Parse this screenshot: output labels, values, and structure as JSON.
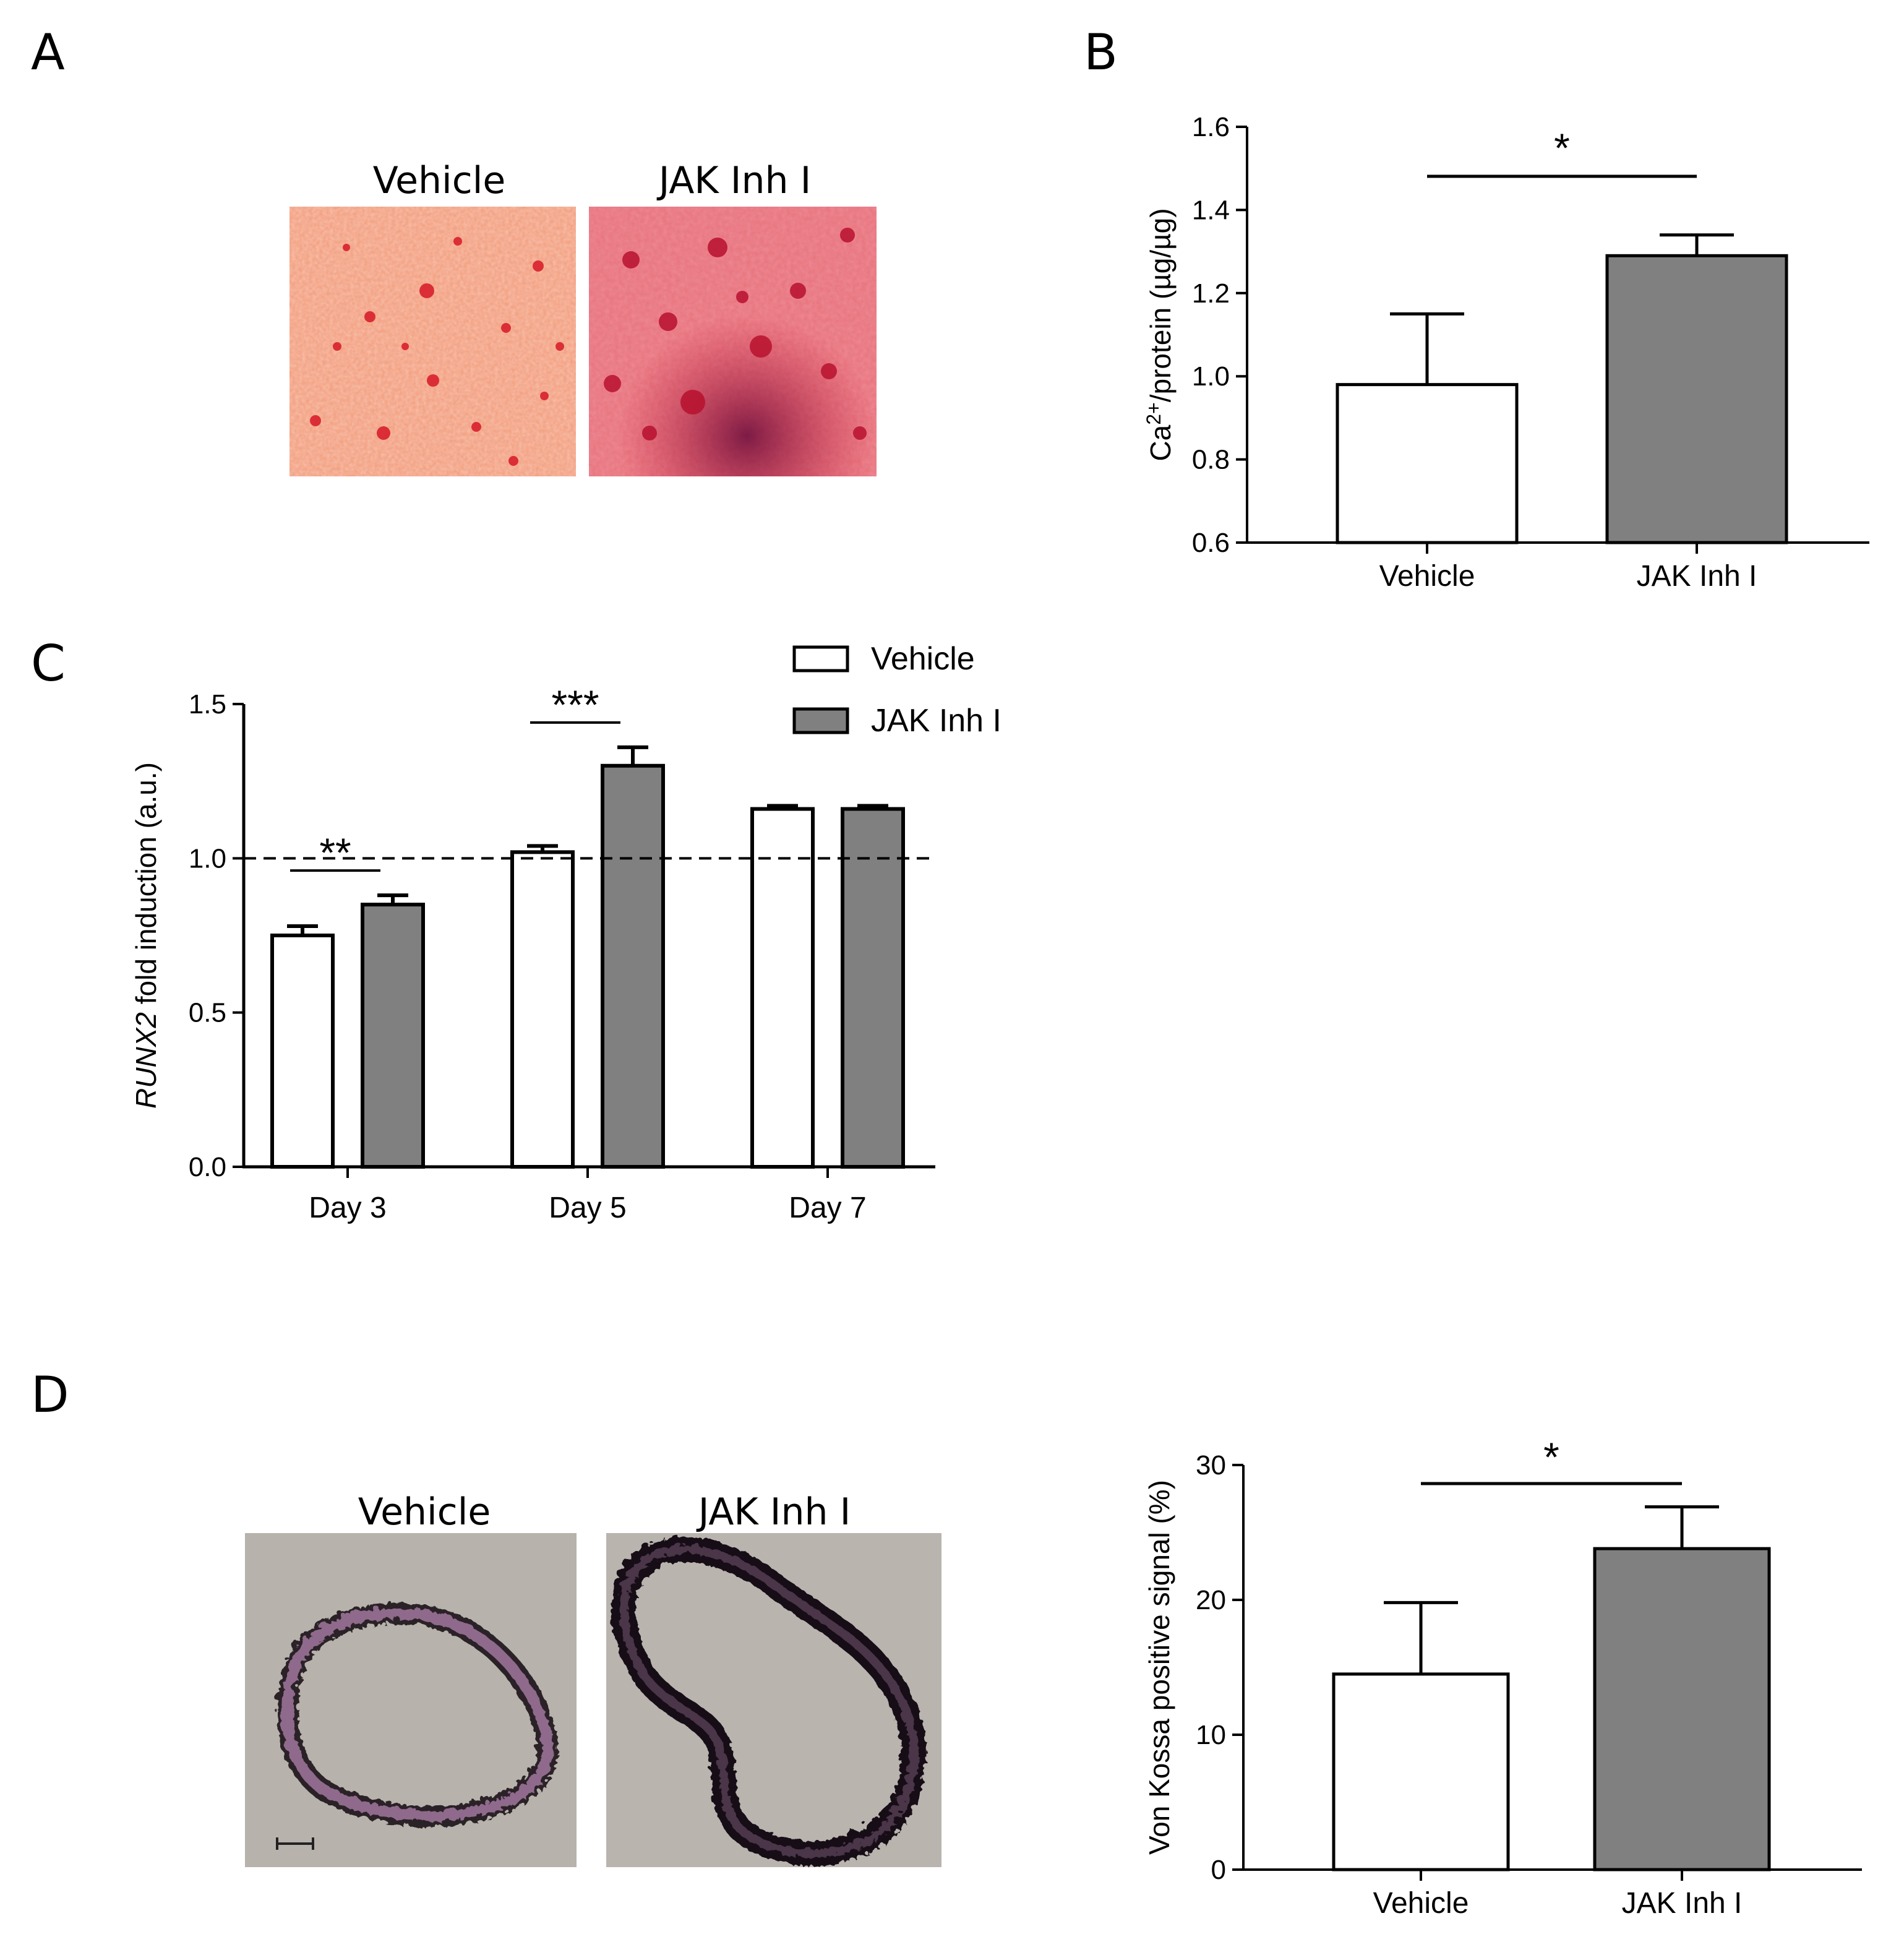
{
  "panels": {
    "A": {
      "letter": "A",
      "images": [
        {
          "label": "Vehicle"
        },
        {
          "label": "JAK Inh I"
        }
      ]
    },
    "D": {
      "letter": "D",
      "images": [
        {
          "label": "Vehicle"
        },
        {
          "label": "JAK Inh I"
        }
      ]
    }
  },
  "colors": {
    "vehicle_fill": "#ffffff",
    "jak_fill": "#808080",
    "stroke": "#000000",
    "alizarin_bg": "#ef9a72",
    "alizarin_spot": "#c8102e",
    "vonkossa_bg": "#b5b0aa",
    "vonkossa_tissue": "#8a6a86",
    "vonkossa_stain": "#1a1a1a"
  },
  "chart_data": [
    {
      "panel": "B",
      "type": "bar",
      "categories": [
        "Vehicle",
        "JAK Inh I"
      ],
      "values": [
        0.98,
        1.29
      ],
      "errors": [
        0.17,
        0.05
      ],
      "ylabel_main": "Ca",
      "ylabel_sup": "2+",
      "ylabel_rest": "/protein (µg/µg)",
      "ylim": [
        0.6,
        1.6
      ],
      "yticks": [
        "0.6",
        "0.8",
        "1.0",
        "1.2",
        "1.4",
        "1.6"
      ],
      "significance": [
        {
          "between": [
            0,
            1
          ],
          "label": "*"
        }
      ]
    },
    {
      "panel": "C",
      "type": "bar",
      "categories": [
        "Day 3",
        "Day 5",
        "Day 7"
      ],
      "series": [
        {
          "name": "Vehicle",
          "values": [
            0.75,
            1.02,
            1.16
          ],
          "errors": [
            0.03,
            0.02,
            0.01
          ]
        },
        {
          "name": "JAK Inh I",
          "values": [
            0.85,
            1.3,
            1.16
          ],
          "errors": [
            0.03,
            0.06,
            0.01
          ]
        }
      ],
      "ylabel_italic": "RUNX2",
      "ylabel_rest": " fold induction (a.u.)",
      "ylim": [
        0.0,
        1.5
      ],
      "yticks": [
        "0.0",
        "0.5",
        "1.0",
        "1.5"
      ],
      "reference_line": 1.0,
      "legend_position": "top-right",
      "significance": [
        {
          "group": 0,
          "label": "**"
        },
        {
          "group": 1,
          "label": "***"
        }
      ]
    },
    {
      "panel": "D",
      "type": "bar",
      "categories": [
        "Vehicle",
        "JAK Inh I"
      ],
      "values": [
        14.5,
        23.8
      ],
      "errors": [
        5.3,
        3.1
      ],
      "ylabel": "Von Kossa positive signal (%)",
      "ylim": [
        0,
        30
      ],
      "yticks": [
        "0",
        "10",
        "20",
        "30"
      ],
      "significance": [
        {
          "between": [
            0,
            1
          ],
          "label": "*"
        }
      ]
    }
  ]
}
